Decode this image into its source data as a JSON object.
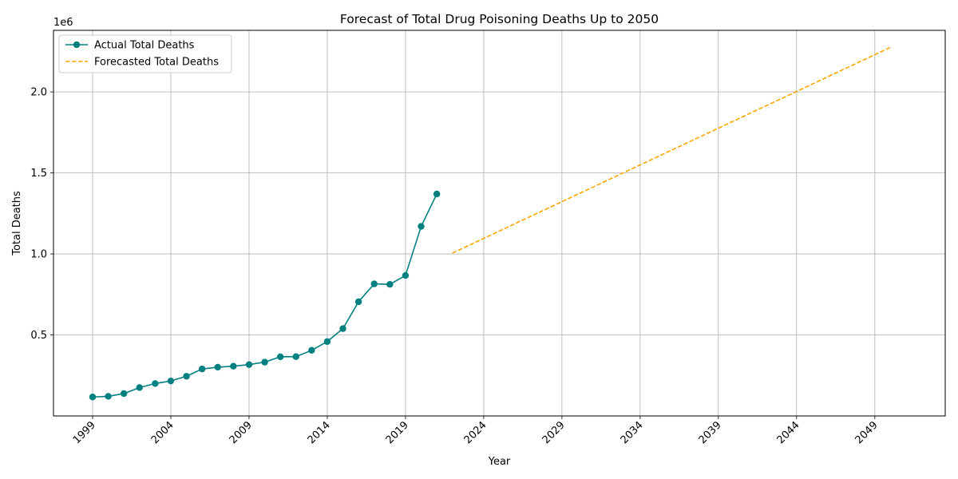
{
  "chart_data": {
    "type": "line",
    "title": "Forecast of Total Drug Poisoning Deaths Up to 2050",
    "xlabel": "Year",
    "ylabel": "Total Deaths",
    "y_offset_label": "1e6",
    "xlim": [
      1996.5,
      2053.5
    ],
    "ylim": [
      0,
      2380000
    ],
    "x_ticks": [
      1999,
      2004,
      2009,
      2014,
      2019,
      2024,
      2029,
      2034,
      2039,
      2044,
      2049
    ],
    "y_ticks": [
      500000,
      1000000,
      1500000,
      2000000
    ],
    "y_tick_labels": [
      "0.5",
      "1.0",
      "1.5",
      "2.0"
    ],
    "grid": true,
    "legend_position": "top-left",
    "series": [
      {
        "name": "Actual Total Deaths",
        "color": "#008080",
        "style": "solid",
        "marker": "circle",
        "x": [
          1999,
          2000,
          2001,
          2002,
          2003,
          2004,
          2005,
          2006,
          2007,
          2008,
          2009,
          2010,
          2011,
          2012,
          2013,
          2014,
          2015,
          2016,
          2017,
          2018,
          2019,
          2020,
          2021
        ],
        "y": [
          117000,
          121000,
          138000,
          175000,
          200000,
          216000,
          245000,
          290000,
          301000,
          307000,
          317000,
          332000,
          365000,
          366000,
          405000,
          459000,
          539000,
          705000,
          815000,
          812000,
          867000,
          1170000,
          1370000
        ]
      },
      {
        "name": "Forecasted Total Deaths",
        "color": "#FFA500",
        "style": "dashed",
        "marker": "none",
        "x": [
          2022,
          2050
        ],
        "y": [
          1005000,
          2275000
        ]
      }
    ]
  }
}
